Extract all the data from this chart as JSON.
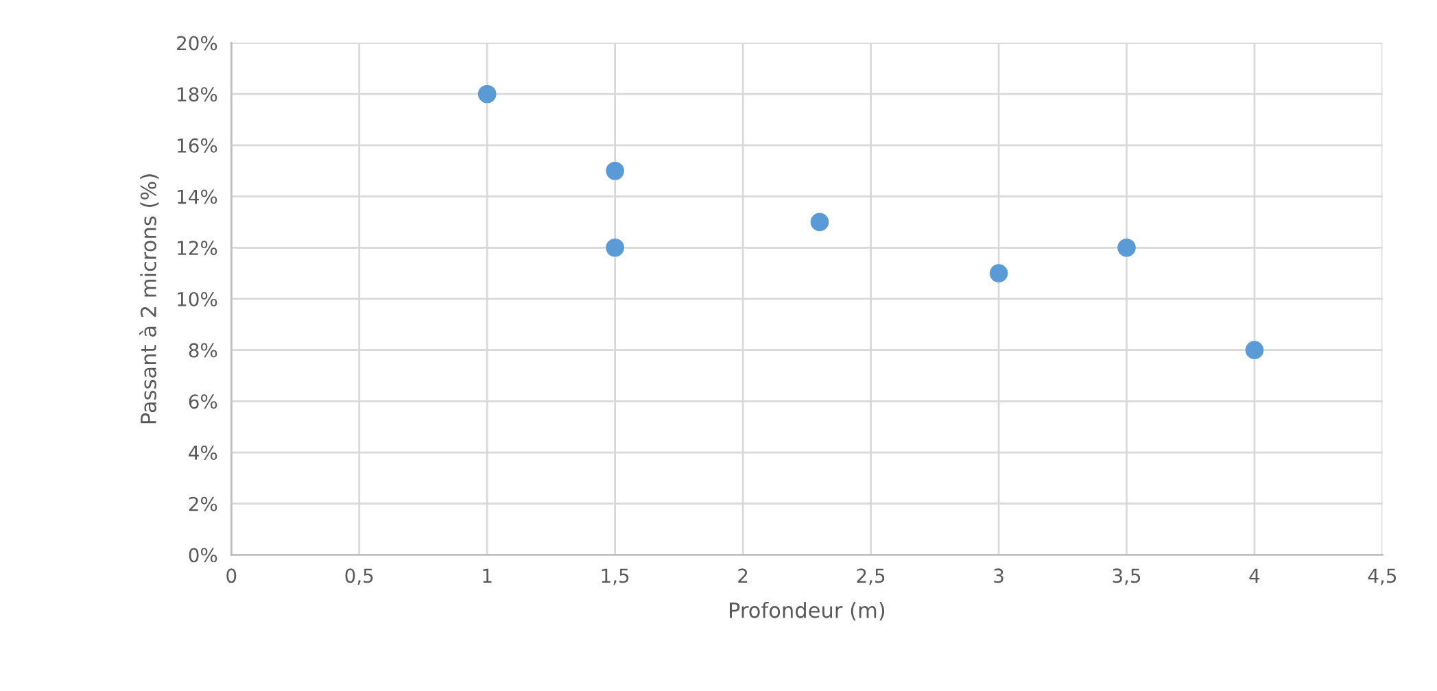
{
  "chart_data": {
    "type": "scatter",
    "xlabel": "Profondeur (m)",
    "ylabel": "Passant à 2 microns (%)",
    "x": [
      1,
      1.5,
      1.5,
      2.3,
      3,
      3.5,
      4
    ],
    "series": [
      {
        "color": "#5b9bd5",
        "values": [
          18,
          15,
          12,
          13,
          11,
          12,
          8
        ]
      }
    ],
    "xlim": [
      0,
      4.5
    ],
    "xticks": [
      0,
      {
        "value": 0.5,
        "label": "0,5"
      },
      1,
      {
        "value": 1.5,
        "label": "1,5"
      },
      2,
      {
        "value": 2.5,
        "label": "2,5"
      },
      3,
      {
        "value": 3.5,
        "label": "3,5"
      },
      4,
      {
        "value": 4.5,
        "label": "4,5"
      }
    ],
    "ylim": [
      0,
      20
    ],
    "yticks": [
      {
        "value": 0,
        "label": "0%"
      },
      {
        "value": 2,
        "label": "2%"
      },
      {
        "value": 4,
        "label": "4%"
      },
      {
        "value": 6,
        "label": "6%"
      },
      {
        "value": 8,
        "label": "8%"
      },
      {
        "value": 10,
        "label": "10%"
      },
      {
        "value": 12,
        "label": "12%"
      },
      {
        "value": 14,
        "label": "14%"
      },
      {
        "value": 16,
        "label": "16%"
      },
      {
        "value": 18,
        "label": "18%"
      },
      {
        "value": 20,
        "label": "20%"
      }
    ],
    "grid": true,
    "marker": "circle"
  }
}
